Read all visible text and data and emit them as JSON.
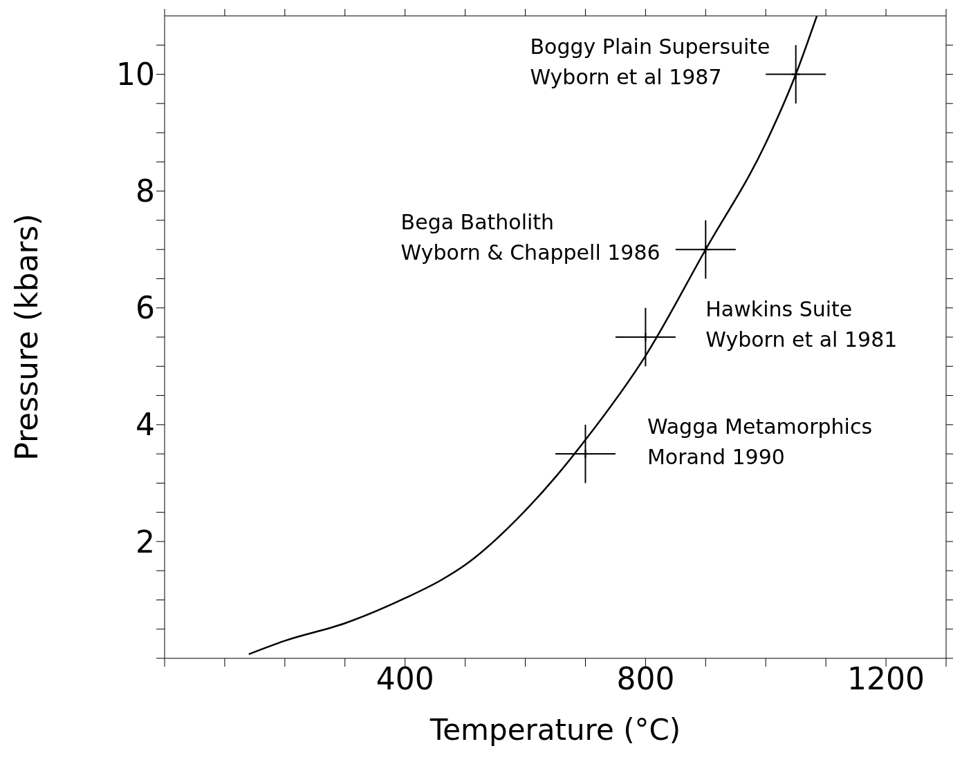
{
  "chart_data": {
    "type": "scatter",
    "xlabel": "Temperature (°C)",
    "ylabel": "Pressure (kbars)",
    "xlim": [
      0,
      1300
    ],
    "ylim": [
      0,
      11
    ],
    "xticks": [
      {
        "value": 0,
        "label": null
      },
      {
        "value": 100,
        "label": null
      },
      {
        "value": 200,
        "label": null
      },
      {
        "value": 300,
        "label": null
      },
      400,
      {
        "value": 500,
        "label": null
      },
      {
        "value": 600,
        "label": null
      },
      {
        "value": 700,
        "label": null
      },
      800,
      {
        "value": 900,
        "label": null
      },
      {
        "value": 1000,
        "label": null
      },
      {
        "value": 1100,
        "label": null
      },
      1200,
      {
        "value": 1300,
        "label": null
      }
    ],
    "yticks": [
      {
        "value": 0,
        "label": null
      },
      {
        "value": 0.5,
        "label": null
      },
      {
        "value": 1,
        "label": null
      },
      {
        "value": 1.5,
        "label": null
      },
      2,
      {
        "value": 2.5,
        "label": null
      },
      {
        "value": 3,
        "label": null
      },
      {
        "value": 3.5,
        "label": null
      },
      4,
      {
        "value": 4.5,
        "label": null
      },
      {
        "value": 5,
        "label": null
      },
      {
        "value": 5.5,
        "label": null
      },
      6,
      {
        "value": 6.5,
        "label": null
      },
      {
        "value": 7,
        "label": null
      },
      {
        "value": 7.5,
        "label": null
      },
      8,
      {
        "value": 8.5,
        "label": null
      },
      {
        "value": 9,
        "label": null
      },
      {
        "value": 9.5,
        "label": null
      },
      10,
      {
        "value": 10.5,
        "label": null
      }
    ],
    "grid": false,
    "legend": false,
    "series": [
      {
        "color": "#000000",
        "marker": "cross",
        "x": [
          700,
          800,
          900,
          1050
        ],
        "values": [
          3.5,
          5.5,
          7,
          10
        ],
        "errors": [
          0.5,
          0.5,
          0.5,
          0.5
        ],
        "xerrors": [
          50,
          50,
          50,
          50
        ]
      },
      {
        "type": "line",
        "color": "#000000",
        "line_style": "solid",
        "marker": "none",
        "x": [
          140,
          200,
          300,
          400,
          460,
          500,
          600,
          650,
          700,
          800,
          900,
          1000,
          1050,
          1085
        ],
        "values": [
          0.07,
          0.3,
          0.6,
          1.03,
          1.34,
          1.6,
          2.53,
          3.1,
          3.74,
          5.18,
          7,
          8.82,
          10,
          11
        ]
      }
    ],
    "annotations": [
      "Wagga Metamorphics\nMorand 1990",
      "Hawkins Suite\nWyborn et al 1981",
      "Bega Batholith\nWyborn & Chappell 1986",
      "Boggy Plain Supersuite\nWyborn et al 1987"
    ]
  }
}
